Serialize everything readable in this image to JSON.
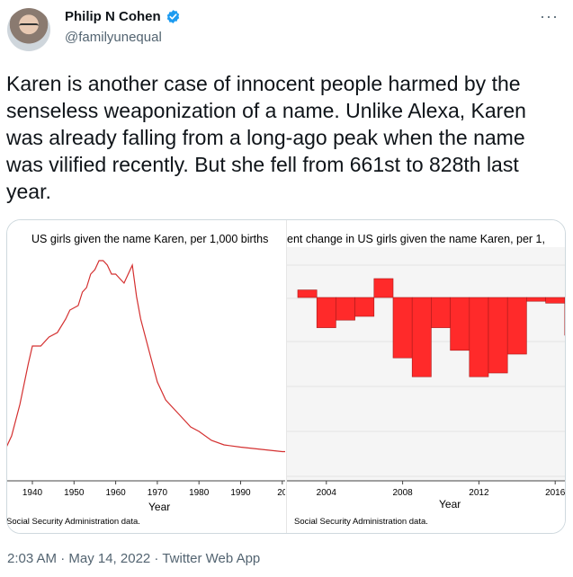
{
  "author": {
    "display_name": "Philip N Cohen",
    "handle": "@familyunequal",
    "verified": true
  },
  "tweet": {
    "text": "Karen is another case of innocent people harmed by the senseless weaponization of a name. Unlike Alexa, Karen was already falling from a long-ago peak when the name was vilified recently. But she fell from 661st to 828th last year.",
    "timestamp": "2:03 AM · May 14, 2022 · Twitter Web App"
  },
  "icons": {
    "verified": "verified-badge-icon",
    "more": "more-options-icon"
  },
  "colors": {
    "verified": "#1d9bf0",
    "series": "#ff2a2a",
    "line": "#d43030"
  },
  "chart_data": [
    {
      "type": "line",
      "title": "US girls given the name Karen, per 1,000 births",
      "xlabel": "Year",
      "note": "Social Security Administration data.",
      "x_ticks": [
        "1940",
        "1950",
        "1960",
        "1970",
        "1980",
        "1990",
        "20"
      ],
      "x": [
        1933,
        1935,
        1937,
        1939,
        1940,
        1942,
        1944,
        1946,
        1948,
        1949,
        1951,
        1952,
        1953,
        1954,
        1955,
        1956,
        1957,
        1958,
        1959,
        1960,
        1961,
        1962,
        1963,
        1964,
        1965,
        1966,
        1968,
        1970,
        1972,
        1974,
        1976,
        1978,
        1980,
        1983,
        1986,
        1990,
        1995,
        2000,
        2001
      ],
      "values": [
        0.3,
        0.7,
        1.4,
        2.3,
        2.7,
        2.7,
        2.9,
        3.0,
        3.3,
        3.5,
        3.6,
        3.9,
        4.0,
        4.3,
        4.4,
        4.6,
        4.6,
        4.5,
        4.3,
        4.3,
        4.2,
        4.1,
        4.3,
        4.5,
        3.8,
        3.3,
        2.6,
        1.9,
        1.5,
        1.3,
        1.1,
        0.9,
        0.8,
        0.6,
        0.5,
        0.45,
        0.4,
        0.35,
        0.35
      ],
      "grid": false
    },
    {
      "type": "bar",
      "title": "ent change in US girls given the name Karen, per 1,",
      "xlabel": "Year",
      "note": "Social Security Administration data.",
      "x_ticks": [
        "2004",
        "2008",
        "2012",
        "2016"
      ],
      "x": [
        2003,
        2004,
        2005,
        2006,
        2007,
        2008,
        2009,
        2010,
        2011,
        2012,
        2013,
        2014,
        2015,
        2016,
        2017
      ],
      "values": [
        2,
        -8,
        -6,
        -5,
        5,
        -16,
        -21,
        -8,
        -14,
        -21,
        -20,
        -15,
        -1,
        -1.5,
        -10
      ],
      "grid": true
    }
  ]
}
